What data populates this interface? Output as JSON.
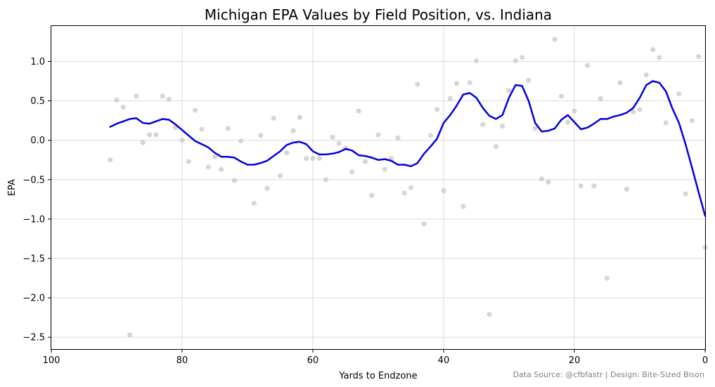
{
  "chart_data": {
    "type": "scatter",
    "title": "Michigan EPA Values by Field Position, vs. Indiana",
    "xlabel": "Yards to Endzone",
    "ylabel": "EPA",
    "xlim": [
      100,
      0
    ],
    "ylim": [
      -2.65,
      1.45
    ],
    "x_ticks": [
      100,
      80,
      60,
      40,
      20,
      0
    ],
    "x_tick_labels": [
      "100",
      "80",
      "60",
      "40",
      "20",
      "0"
    ],
    "y_ticks": [
      1.0,
      0.5,
      0.0,
      -0.5,
      -1.0,
      -1.5,
      -2.0,
      -2.5
    ],
    "y_tick_labels": [
      "1.0",
      "0.5",
      "0.0",
      "−0.5",
      "−1.0",
      "−1.5",
      "−2.0",
      "−2.5"
    ],
    "grid": true,
    "source_note": "Data Source: @cfbfastr | Design: Bite-Sized Bison",
    "colors": {
      "points": "#c8c8c8",
      "line": "#0000e0",
      "grid": "#d9d9d9"
    },
    "series": [
      {
        "kind": "scatter",
        "points": [
          [
            91,
            -0.25
          ],
          [
            90,
            0.51
          ],
          [
            89,
            0.42
          ],
          [
            88,
            -2.47
          ],
          [
            87,
            0.56
          ],
          [
            86,
            -0.03
          ],
          [
            85,
            0.07
          ],
          [
            84,
            0.07
          ],
          [
            83,
            0.56
          ],
          [
            82,
            0.52
          ],
          [
            81,
            0.16
          ],
          [
            80,
            0.0
          ],
          [
            79,
            -0.27
          ],
          [
            78,
            0.38
          ],
          [
            77,
            0.14
          ],
          [
            76,
            -0.34
          ],
          [
            75,
            -0.21
          ],
          [
            74,
            -0.37
          ],
          [
            73,
            0.15
          ],
          [
            72,
            -0.51
          ],
          [
            71,
            -0.01
          ],
          [
            69,
            -0.8
          ],
          [
            68,
            0.06
          ],
          [
            67,
            -0.61
          ],
          [
            66,
            0.28
          ],
          [
            65,
            -0.45
          ],
          [
            64,
            -0.16
          ],
          [
            63,
            0.12
          ],
          [
            62,
            0.29
          ],
          [
            61,
            -0.23
          ],
          [
            60,
            -0.23
          ],
          [
            59,
            -0.23
          ],
          [
            58,
            -0.5
          ],
          [
            57,
            0.04
          ],
          [
            56,
            -0.04
          ],
          [
            55,
            -0.1
          ],
          [
            54,
            -0.4
          ],
          [
            53,
            0.37
          ],
          [
            52,
            -0.27
          ],
          [
            51,
            -0.7
          ],
          [
            50,
            0.07
          ],
          [
            49,
            -0.37
          ],
          [
            48,
            -0.23
          ],
          [
            47,
            0.03
          ],
          [
            46,
            -0.67
          ],
          [
            45,
            -0.6
          ],
          [
            44,
            0.71
          ],
          [
            43,
            -1.06
          ],
          [
            42,
            0.06
          ],
          [
            41,
            0.39
          ],
          [
            40,
            -0.64
          ],
          [
            39,
            0.53
          ],
          [
            38,
            0.72
          ],
          [
            37,
            -0.84
          ],
          [
            36,
            0.73
          ],
          [
            35,
            1.01
          ],
          [
            34,
            0.2
          ],
          [
            33,
            -2.21
          ],
          [
            32,
            -0.08
          ],
          [
            31,
            0.18
          ],
          [
            30,
            0.63
          ],
          [
            29,
            1.01
          ],
          [
            28,
            1.05
          ],
          [
            27,
            0.76
          ],
          [
            26,
            0.15
          ],
          [
            25,
            -0.49
          ],
          [
            24,
            -0.53
          ],
          [
            23,
            1.28
          ],
          [
            22,
            0.56
          ],
          [
            21,
            0.23
          ],
          [
            20,
            0.37
          ],
          [
            19,
            -0.58
          ],
          [
            18,
            0.95
          ],
          [
            17,
            -0.58
          ],
          [
            16,
            0.53
          ],
          [
            15,
            -1.75
          ],
          [
            13,
            0.73
          ],
          [
            12,
            -0.62
          ],
          [
            11,
            0.36
          ],
          [
            10,
            0.39
          ],
          [
            9,
            0.83
          ],
          [
            8,
            1.15
          ],
          [
            7,
            1.05
          ],
          [
            6,
            0.22
          ],
          [
            4,
            0.59
          ],
          [
            3,
            -0.68
          ],
          [
            2,
            0.25
          ],
          [
            1,
            1.06
          ],
          [
            0,
            -1.36
          ]
        ]
      },
      {
        "kind": "line",
        "points": [
          [
            91,
            0.17
          ],
          [
            90,
            0.21
          ],
          [
            89,
            0.24
          ],
          [
            88,
            0.27
          ],
          [
            87,
            0.28
          ],
          [
            86,
            0.22
          ],
          [
            85,
            0.21
          ],
          [
            84,
            0.24
          ],
          [
            83,
            0.27
          ],
          [
            82,
            0.26
          ],
          [
            81,
            0.2
          ],
          [
            80,
            0.13
          ],
          [
            79,
            0.06
          ],
          [
            78,
            -0.01
          ],
          [
            77,
            -0.05
          ],
          [
            76,
            -0.09
          ],
          [
            75,
            -0.16
          ],
          [
            74,
            -0.21
          ],
          [
            73,
            -0.21
          ],
          [
            72,
            -0.22
          ],
          [
            71,
            -0.27
          ],
          [
            70,
            -0.31
          ],
          [
            69,
            -0.31
          ],
          [
            68,
            -0.29
          ],
          [
            67,
            -0.26
          ],
          [
            66,
            -0.2
          ],
          [
            65,
            -0.14
          ],
          [
            64,
            -0.06
          ],
          [
            63,
            -0.03
          ],
          [
            62,
            -0.02
          ],
          [
            61,
            -0.05
          ],
          [
            60,
            -0.14
          ],
          [
            59,
            -0.18
          ],
          [
            58,
            -0.18
          ],
          [
            57,
            -0.17
          ],
          [
            56,
            -0.15
          ],
          [
            55,
            -0.11
          ],
          [
            54,
            -0.13
          ],
          [
            53,
            -0.19
          ],
          [
            52,
            -0.2
          ],
          [
            51,
            -0.22
          ],
          [
            50,
            -0.25
          ],
          [
            49,
            -0.24
          ],
          [
            48,
            -0.26
          ],
          [
            47,
            -0.31
          ],
          [
            46,
            -0.31
          ],
          [
            45,
            -0.33
          ],
          [
            44,
            -0.29
          ],
          [
            43,
            -0.17
          ],
          [
            42,
            -0.08
          ],
          [
            41,
            0.02
          ],
          [
            40,
            0.22
          ],
          [
            39,
            0.32
          ],
          [
            38,
            0.44
          ],
          [
            37,
            0.58
          ],
          [
            36,
            0.6
          ],
          [
            35,
            0.54
          ],
          [
            34,
            0.41
          ],
          [
            33,
            0.31
          ],
          [
            32,
            0.27
          ],
          [
            31,
            0.32
          ],
          [
            30,
            0.54
          ],
          [
            29,
            0.7
          ],
          [
            28,
            0.69
          ],
          [
            27,
            0.5
          ],
          [
            26,
            0.22
          ],
          [
            25,
            0.11
          ],
          [
            24,
            0.12
          ],
          [
            23,
            0.15
          ],
          [
            22,
            0.26
          ],
          [
            21,
            0.32
          ],
          [
            20,
            0.23
          ],
          [
            19,
            0.14
          ],
          [
            18,
            0.16
          ],
          [
            17,
            0.21
          ],
          [
            16,
            0.27
          ],
          [
            15,
            0.27
          ],
          [
            14,
            0.3
          ],
          [
            13,
            0.32
          ],
          [
            12,
            0.35
          ],
          [
            11,
            0.41
          ],
          [
            10,
            0.54
          ],
          [
            9,
            0.7
          ],
          [
            8,
            0.75
          ],
          [
            7,
            0.73
          ],
          [
            6,
            0.62
          ],
          [
            5,
            0.4
          ],
          [
            4,
            0.22
          ],
          [
            3,
            -0.05
          ],
          [
            2,
            -0.35
          ],
          [
            1,
            -0.66
          ],
          [
            0,
            -0.96
          ]
        ]
      }
    ]
  }
}
